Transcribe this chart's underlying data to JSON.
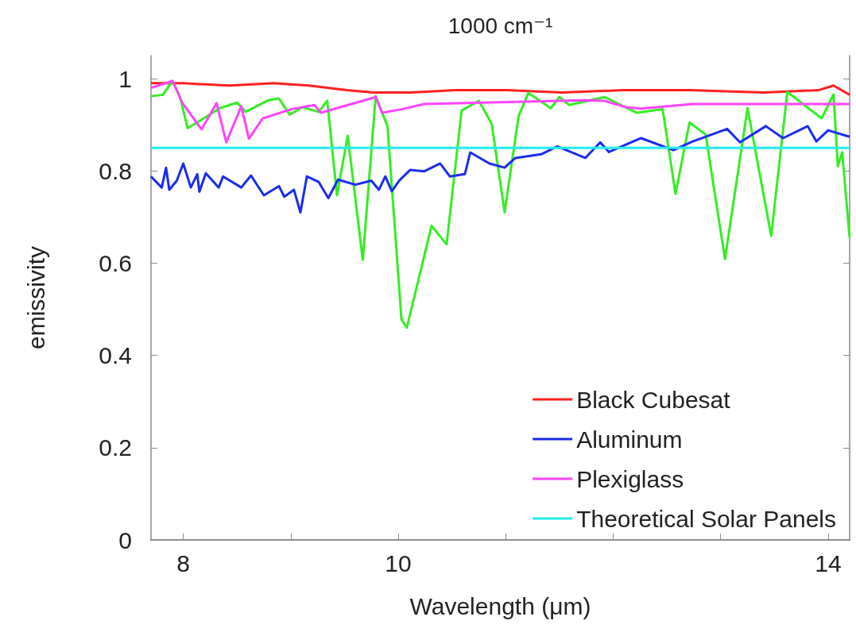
{
  "chart_data": {
    "type": "line",
    "xlabel": "Wavelength (μm)",
    "ylabel": "emissivity",
    "xlim": [
      7.7,
      14.2
    ],
    "xticks": [
      8,
      {
        "value": 9,
        "label": null
      },
      10,
      {
        "value": 11,
        "label": null
      },
      {
        "value": 12,
        "label": null
      },
      {
        "value": 13,
        "label": null
      },
      14
    ],
    "x2label": "1000 cm⁻¹",
    "ylim": [
      0,
      1.05
    ],
    "yticks": [
      0,
      0.2,
      0.4,
      0.6,
      0.8,
      1
    ],
    "legend": "bottom right",
    "marker": "none",
    "line_style": "solid",
    "series": [
      {
        "name": "Black Cubesat",
        "color": "#ff2020",
        "x": [
          7.7,
          8.0,
          8.43,
          8.84,
          9.17,
          9.52,
          9.77,
          10.11,
          10.54,
          11.01,
          11.52,
          12.09,
          12.71,
          13.4,
          13.91,
          14.05,
          14.2
        ],
        "values": [
          0.99,
          0.99,
          0.985,
          0.99,
          0.985,
          0.975,
          0.97,
          0.97,
          0.975,
          0.975,
          0.97,
          0.975,
          0.975,
          0.97,
          0.975,
          0.985,
          0.965
        ]
      },
      {
        "color": "#33ee22",
        "x": [
          7.7,
          7.81,
          7.9,
          7.97,
          8.04,
          8.15,
          8.34,
          8.5,
          8.58,
          8.79,
          8.89,
          8.99,
          9.11,
          9.26,
          9.34,
          9.43,
          9.53,
          9.67,
          9.79,
          9.9,
          10.03,
          10.08,
          10.31,
          10.45,
          10.59,
          10.75,
          10.87,
          10.99,
          11.12,
          11.21,
          11.42,
          11.5,
          11.59,
          11.92,
          12.22,
          12.46,
          12.58,
          12.71,
          12.86,
          13.04,
          13.25,
          13.47,
          13.62,
          13.94,
          14.05,
          14.09,
          14.13,
          14.2
        ],
        "values": [
          0.962,
          0.965,
          0.995,
          0.96,
          0.893,
          0.908,
          0.936,
          0.948,
          0.928,
          0.953,
          0.957,
          0.922,
          0.938,
          0.928,
          0.952,
          0.747,
          0.876,
          0.607,
          0.962,
          0.897,
          0.478,
          0.46,
          0.681,
          0.641,
          0.931,
          0.952,
          0.902,
          0.71,
          0.919,
          0.969,
          0.936,
          0.96,
          0.943,
          0.96,
          0.926,
          0.934,
          0.75,
          0.905,
          0.879,
          0.609,
          0.936,
          0.659,
          0.971,
          0.914,
          0.966,
          0.81,
          0.84,
          0.655
        ]
      },
      {
        "name": "Aluminum",
        "color": "#1a2cf0",
        "x": [
          7.7,
          7.75,
          7.8,
          7.84,
          7.87,
          7.94,
          8.0,
          8.07,
          8.13,
          8.15,
          8.21,
          8.33,
          8.37,
          8.54,
          8.63,
          8.75,
          8.89,
          8.94,
          9.03,
          9.09,
          9.15,
          9.26,
          9.35,
          9.44,
          9.6,
          9.75,
          9.82,
          9.88,
          9.94,
          10.01,
          10.11,
          10.24,
          10.39,
          10.48,
          10.62,
          10.67,
          10.85,
          10.99,
          11.09,
          11.33,
          11.48,
          11.74,
          11.88,
          11.96,
          12.26,
          12.56,
          12.74,
          13.06,
          13.18,
          13.42,
          13.58,
          13.81,
          13.89,
          14.0,
          14.2
        ],
        "values": [
          0.788,
          0.776,
          0.764,
          0.807,
          0.759,
          0.779,
          0.816,
          0.764,
          0.793,
          0.755,
          0.795,
          0.764,
          0.788,
          0.764,
          0.79,
          0.747,
          0.767,
          0.744,
          0.759,
          0.71,
          0.788,
          0.776,
          0.741,
          0.781,
          0.77,
          0.779,
          0.759,
          0.788,
          0.756,
          0.779,
          0.802,
          0.799,
          0.816,
          0.788,
          0.793,
          0.84,
          0.816,
          0.807,
          0.828,
          0.836,
          0.853,
          0.828,
          0.862,
          0.841,
          0.871,
          0.845,
          0.864,
          0.891,
          0.862,
          0.897,
          0.871,
          0.897,
          0.864,
          0.888,
          0.874
        ]
      },
      {
        "name": "Plexiglass",
        "color": "#ff44ff",
        "x": [
          7.7,
          7.9,
          7.99,
          8.17,
          8.31,
          8.4,
          8.54,
          8.61,
          8.74,
          9.01,
          9.22,
          9.28,
          9.79,
          9.85,
          10.04,
          10.24,
          11.74,
          11.92,
          12.12,
          12.26,
          12.74,
          14.2
        ],
        "values": [
          0.98,
          0.995,
          0.948,
          0.89,
          0.947,
          0.862,
          0.94,
          0.87,
          0.914,
          0.934,
          0.943,
          0.926,
          0.96,
          0.926,
          0.934,
          0.945,
          0.953,
          0.952,
          0.938,
          0.935,
          0.945,
          0.945
        ]
      },
      {
        "name": "Theoretical Solar Panels",
        "color": "#22eeee",
        "x": [
          7.7,
          14.2
        ],
        "values": [
          0.85,
          0.85
        ]
      }
    ]
  }
}
